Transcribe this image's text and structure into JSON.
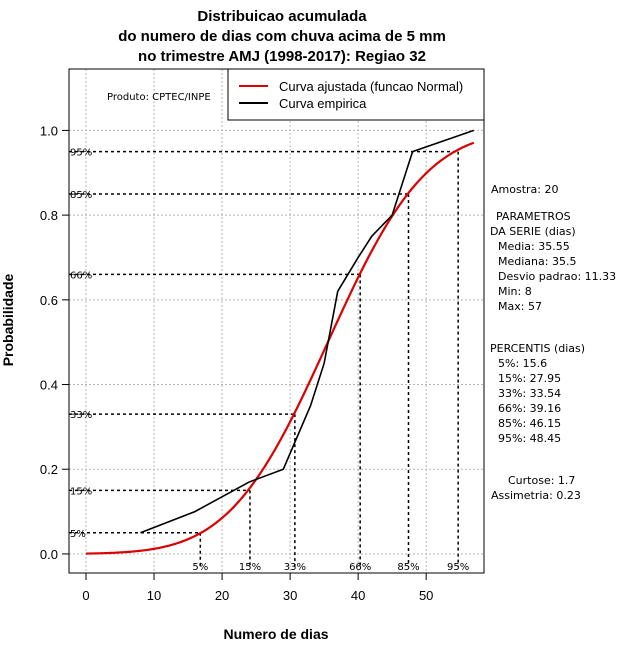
{
  "chart_data": {
    "type": "line",
    "title": [
      "Distribuicao acumulada",
      "do numero de dias com chuva acima de 5 mm",
      "no trimestre AMJ (1998-2017): Regiao 32"
    ],
    "xlabel": "Numero de dias",
    "ylabel": "Probabilidade",
    "xlim": [
      -2.5,
      58.5
    ],
    "ylim": [
      -0.045,
      1.145
    ],
    "xticks": [
      0,
      10,
      20,
      30,
      40,
      50
    ],
    "xtick_labels": [
      "0",
      "10",
      "20",
      "30",
      "40",
      "50"
    ],
    "yticks": [
      0.0,
      0.2,
      0.4,
      0.6,
      0.8,
      1.0
    ],
    "ytick_labels": [
      "0.0",
      "0.2",
      "0.4",
      "0.6",
      "0.8",
      "1.0"
    ],
    "grid": true,
    "credit": "Produto: CPTEC/INPE",
    "legend": {
      "position": "top-right",
      "entries": [
        {
          "label": "Curva ajustada (funcao Normal)",
          "color": "#dd0000"
        },
        {
          "label": "Curva empirica",
          "color": "#000000"
        }
      ]
    },
    "fitted": {
      "name": "Curva ajustada (funcao Normal)",
      "mean": 35.55,
      "sd": 11.33,
      "x_range": [
        0,
        57
      ],
      "color": "#dd0000"
    },
    "series": [
      {
        "name": "Curva empirica",
        "color": "#000000",
        "x": [
          8,
          16,
          24,
          29,
          33,
          35,
          37,
          40,
          42,
          45,
          48,
          57
        ],
        "y": [
          0.05,
          0.1,
          0.17,
          0.2,
          0.35,
          0.45,
          0.62,
          0.7,
          0.75,
          0.8,
          0.95,
          1.0
        ]
      }
    ],
    "percentile_markers": [
      {
        "label": "5%",
        "x": 16.8,
        "y": 0.05
      },
      {
        "label": "15%",
        "x": 24.1,
        "y": 0.15
      },
      {
        "label": "33%",
        "x": 30.7,
        "y": 0.33
      },
      {
        "label": "66%",
        "x": 40.3,
        "y": 0.66
      },
      {
        "label": "85%",
        "x": 47.4,
        "y": 0.85
      },
      {
        "label": "95%",
        "x": 54.7,
        "y": 0.95
      }
    ],
    "side_panel": {
      "amostra": "Amostra: 20",
      "param_title_1": "PARAMETROS",
      "param_title_2": "DA SERIE (dias)",
      "params": [
        "Media: 35.55",
        "Mediana: 35.5",
        "Desvio padrao: 11.33",
        "Min: 8",
        "Max: 57"
      ],
      "perc_title": "PERCENTIS (dias)",
      "percentis": [
        "5%: 15.6",
        "15%: 27.95",
        "33%: 33.54",
        "66%: 39.16",
        "85%: 46.15",
        "95%: 48.45"
      ],
      "curtose": "Curtose: 1.7",
      "assimetria": "Assimetria: 0.23"
    }
  }
}
